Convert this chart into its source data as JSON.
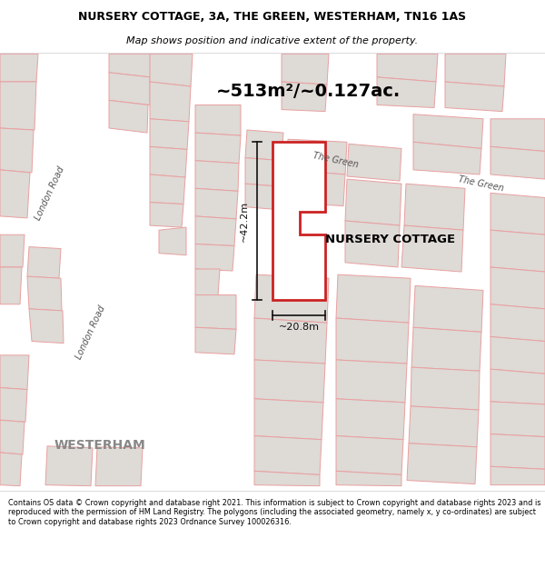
{
  "title": "NURSERY COTTAGE, 3A, THE GREEN, WESTERHAM, TN16 1AS",
  "subtitle": "Map shows position and indicative extent of the property.",
  "area_text": "~513m²/~0.127ac.",
  "width_label": "~20.8m",
  "height_label": "~42.2m",
  "property_label": "NURSERY COTTAGE",
  "road_label_london1": "London Road",
  "road_label_london2": "London Road",
  "road_label_green1": "The Green",
  "road_label_green2": "The Green",
  "town_label": "WESTERHAM",
  "footer": "Contains OS data © Crown copyright and database right 2021. This information is subject to Crown copyright and database rights 2023 and is reproduced with the permission of HM Land Registry. The polygons (including the associated geometry, namely x, y co-ordinates) are subject to Crown copyright and database rights 2023 Ordnance Survey 100026316.",
  "map_bg": "#f2eeea",
  "road_fill": "#ffffff",
  "building_fill": "#dedad6",
  "building_edge": "#e8a0a0",
  "property_fill": "#ffffff",
  "property_edge": "#cc2222",
  "dim_color": "#111111",
  "text_color": "#555555",
  "footer_bg": "#ffffff"
}
